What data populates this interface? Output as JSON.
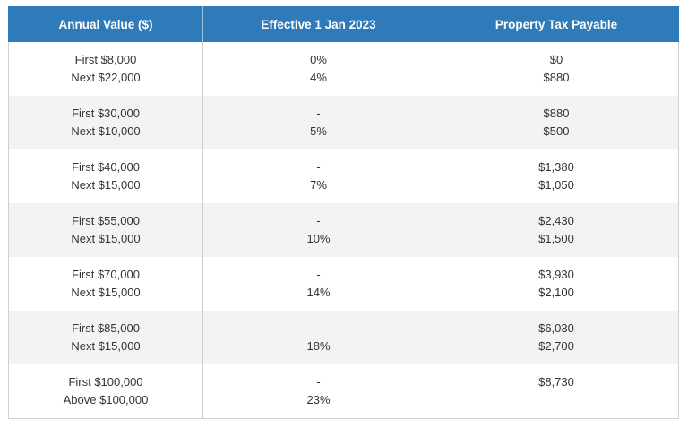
{
  "table": {
    "headers": [
      "Annual Value ($)",
      "Effective 1 Jan 2023",
      "Property Tax Payable"
    ],
    "rows": [
      {
        "value": [
          "First $8,000",
          "Next $22,000"
        ],
        "rate": [
          "0%",
          "4%"
        ],
        "tax": [
          "$0",
          "$880"
        ]
      },
      {
        "value": [
          "First $30,000",
          "Next $10,000"
        ],
        "rate": [
          "-",
          "5%"
        ],
        "tax": [
          "$880",
          "$500"
        ]
      },
      {
        "value": [
          "First $40,000",
          "Next $15,000"
        ],
        "rate": [
          "-",
          "7%"
        ],
        "tax": [
          "$1,380",
          "$1,050"
        ]
      },
      {
        "value": [
          "First $55,000",
          "Next $15,000"
        ],
        "rate": [
          "-",
          "10%"
        ],
        "tax": [
          "$2,430",
          "$1,500"
        ]
      },
      {
        "value": [
          "First $70,000",
          "Next $15,000"
        ],
        "rate": [
          "-",
          "14%"
        ],
        "tax": [
          "$3,930",
          "$2,100"
        ]
      },
      {
        "value": [
          "First $85,000",
          "Next $15,000"
        ],
        "rate": [
          "-",
          "18%"
        ],
        "tax": [
          "$6,030",
          "$2,700"
        ]
      },
      {
        "value": [
          "First $100,000",
          "Above $100,000"
        ],
        "rate": [
          "-",
          "23%"
        ],
        "tax": [
          "$8,730",
          ""
        ]
      }
    ]
  },
  "colors": {
    "header_bg": "#2f7ab8",
    "header_text": "#ffffff",
    "row_alt_bg": "#f3f3f3",
    "border": "#d0d0d0"
  }
}
